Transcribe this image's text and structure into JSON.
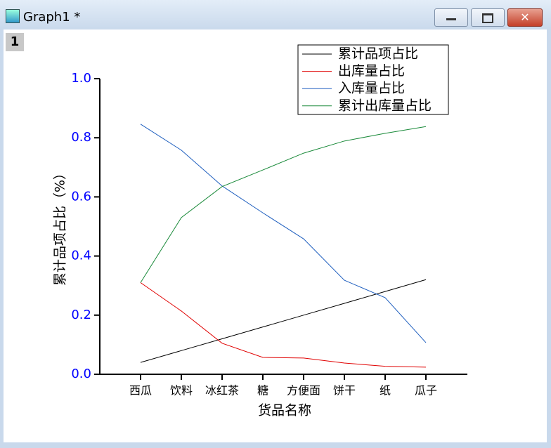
{
  "window": {
    "title": "Graph1 *",
    "layer": "1"
  },
  "chart_data": {
    "type": "line",
    "xlabel": "货品名称",
    "ylabel": "累计品项占比（%）",
    "categories": [
      "西瓜",
      "饮料",
      "冰红茶",
      "糖",
      "方便面",
      "饼干",
      "纸",
      "瓜子"
    ],
    "series": [
      {
        "name": "累计品项占比",
        "color": "#000000",
        "values": [
          0.04,
          0.08,
          0.12,
          0.16,
          0.2,
          0.24,
          0.28,
          0.32
        ]
      },
      {
        "name": "出库量占比",
        "color": "#e00000",
        "values": [
          0.31,
          0.214,
          0.105,
          0.057,
          0.055,
          0.038,
          0.027,
          0.024
        ]
      },
      {
        "name": "入库量占比",
        "color": "#1f5fbf",
        "values": [
          0.846,
          0.758,
          0.637,
          0.546,
          0.458,
          0.318,
          0.259,
          0.107
        ]
      },
      {
        "name": "累计出库量占比",
        "color": "#1a8a3a",
        "values": [
          0.31,
          0.53,
          0.635,
          0.691,
          0.748,
          0.789,
          0.815,
          0.838
        ]
      }
    ],
    "ylim": [
      0,
      1
    ],
    "yticks": [
      {
        "value": 0,
        "label": "0.0"
      },
      0.2,
      0.4,
      0.6,
      0.8,
      {
        "value": 1,
        "label": "1.0"
      }
    ],
    "tick_label_color": "#0000ff",
    "legend": "top-right"
  }
}
